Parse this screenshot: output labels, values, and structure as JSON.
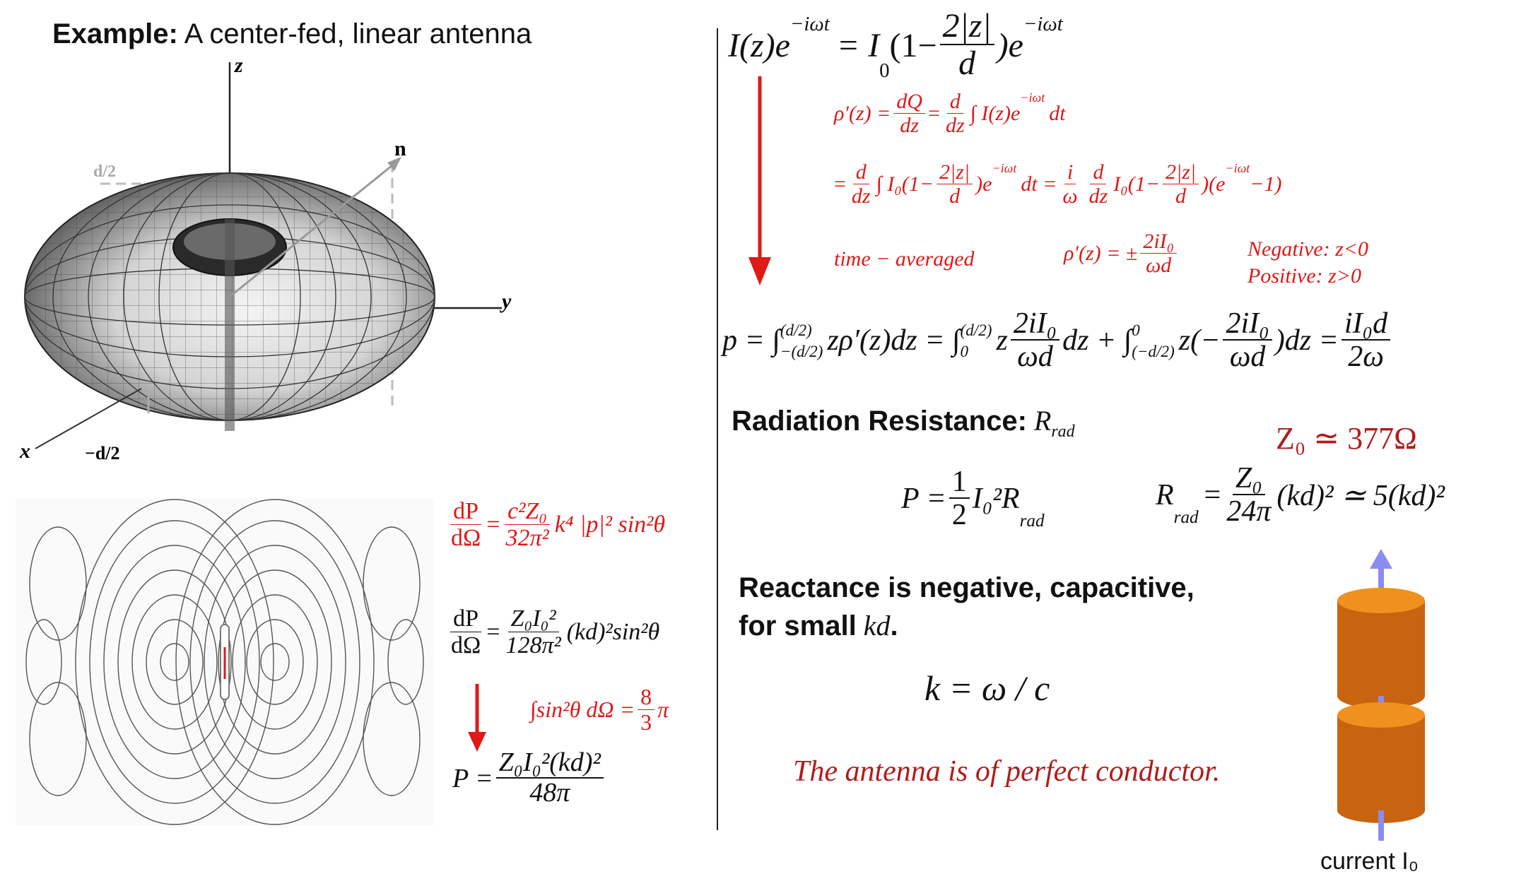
{
  "title": {
    "bold": "Example:",
    "rest": "A center-fed, linear antenna"
  },
  "figure3d": {
    "axis_z": "z",
    "axis_y": "y",
    "axis_x": "x",
    "axis_n": "n",
    "top_marker": "d/2",
    "bottom_marker": "−d/2"
  },
  "left_equations": {
    "dP_dOmega_lhs_num": "dP",
    "dP_dOmega_lhs_den": "dΩ",
    "eq1_num": "c²Z₀",
    "eq1_den": "32π²",
    "eq1_rest": "k⁴ |p|² sin²θ",
    "eq2_num": "Z₀I₀²",
    "eq2_den": "128π²",
    "eq2_rest": "(kd)²sin²θ",
    "integral": "∫sin²θ dΩ =",
    "integral_num": "8",
    "integral_den": "3",
    "integral_pi": "π",
    "P_lhs": "P =",
    "P_num": "Z₀I₀²(kd)²",
    "P_den": "48π"
  },
  "right_equations": {
    "current_lhs": "I(z)e",
    "current_exp": "−iωt",
    "current_mid": "= I",
    "current_sub": "0",
    "current_paren_open": "(1−",
    "current_num": "2|z|",
    "current_den": "d",
    "current_close": ")e",
    "rho_line1_lhs": "ρ′(z) =",
    "rho_line1_num1": "dQ",
    "rho_line1_den1": "dz",
    "rho_line1_eq": "=",
    "rho_line1_num2": "d",
    "rho_line1_den2": "dz",
    "rho_line1_rest": "∫ I(z)e",
    "rho_line1_exp": "−iωt",
    "rho_line1_tail": "dt",
    "rho_line2_eq": "=",
    "rho_line2_num1": "d",
    "rho_line2_den1": "dz",
    "rho_line2_mid": "∫ I₀(1−",
    "rho_line2_num2": "2|z|",
    "rho_line2_den2": "d",
    "rho_line2_mid2": ")e",
    "rho_line2_exp": "−iωt",
    "rho_line2_dt": "dt =",
    "rho_line2_num3": "i",
    "rho_line2_den3": "ω",
    "rho_line2_num4": "d",
    "rho_line2_den4": "dz",
    "rho_line2_mid3": "I₀(1−",
    "rho_line2_num5": "2|z|",
    "rho_line2_den5": "d",
    "rho_line2_tail": ")(e",
    "rho_line2_exp2": "−iωt",
    "rho_line2_end": "−1)",
    "time_averaged": "time − averaged",
    "rho_avg_lhs": "ρ′(z) = ±",
    "rho_avg_num": "2iI₀",
    "rho_avg_den": "ωd",
    "negative": "Negative: z<0",
    "positive": "Positive:   z>0",
    "p_lhs": "p = ∫",
    "p_lim1_top": "(d/2)",
    "p_lim1_bot": "−(d/2)",
    "p_mid1": "zρ′(z)dz = ∫",
    "p_lim2_top": "(d/2)",
    "p_lim2_bot": "0",
    "p_z": "z",
    "p_num1": "2iI₀",
    "p_den1": "ωd",
    "p_mid2": "dz + ∫",
    "p_lim3_top": "0",
    "p_lim3_bot": "(−d/2)",
    "p_z2": "z(−",
    "p_num2": "2iI₀",
    "p_den2": "ωd",
    "p_mid3": ")dz =",
    "p_num3": "iI₀d",
    "p_den3": "2ω"
  },
  "radiation": {
    "heading_bold": "Radiation Resistance:",
    "heading_symbol": "R",
    "heading_sub": "rad",
    "z0": "Z₀ ≃ 377Ω",
    "P_lhs": "P =",
    "P_num": "1",
    "P_den": "2",
    "P_rest": "I₀²R",
    "P_sub": "rad",
    "R_lhs": "R",
    "R_sub": "rad",
    "R_eq": "=",
    "R_num": "Z₀",
    "R_den": "24π",
    "R_rest": "(kd)² ≃ 5(kd)²"
  },
  "reactance": {
    "line1": "Reactance is negative, capacitive,",
    "line2_bold": "for small",
    "line2_it": "kd",
    "line2_end": ".",
    "k_eq": "k = ω / c",
    "note": "The antenna is of perfect conductor."
  },
  "antenna_figure": {
    "caption": "current I₀"
  },
  "colors": {
    "red": "#e01818",
    "dark_red": "#b01c1c",
    "cylinder_top": "#f0901e",
    "cylinder_body": "#c8640f",
    "arrow_blue": "#8a8cf2"
  }
}
